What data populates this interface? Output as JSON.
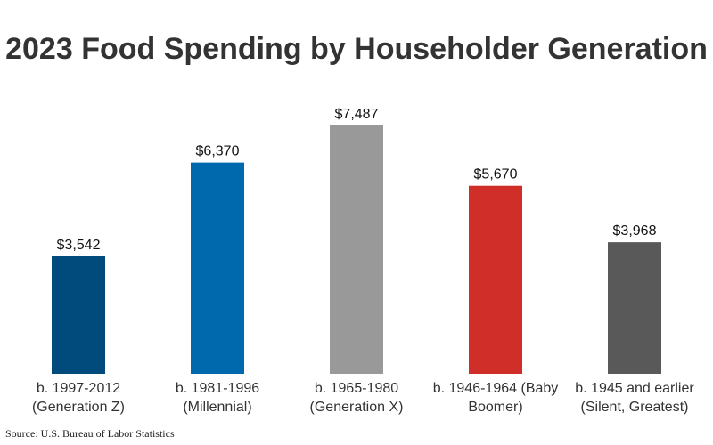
{
  "chart_data": {
    "type": "bar",
    "title": "2023 Food Spending by Householder Generation",
    "categories": [
      "b. 1997-2012 (Generation Z)",
      "b. 1981-1996 (Millennial)",
      "b. 1965-1980 (Generation X)",
      "b. 1946-1964 (Baby Boomer)",
      "b. 1945 and earlier (Silent, Greatest)"
    ],
    "values": [
      3542,
      6370,
      7487,
      5670,
      3968
    ],
    "value_labels": [
      "$3,542",
      "$6,370",
      "$7,487",
      "$5,670",
      "$3,968"
    ],
    "colors": [
      "#004a7c",
      "#0068ac",
      "#999999",
      "#d02f29",
      "#595959"
    ],
    "source": "Source: U.S. Bureau of Labor Statistics"
  }
}
